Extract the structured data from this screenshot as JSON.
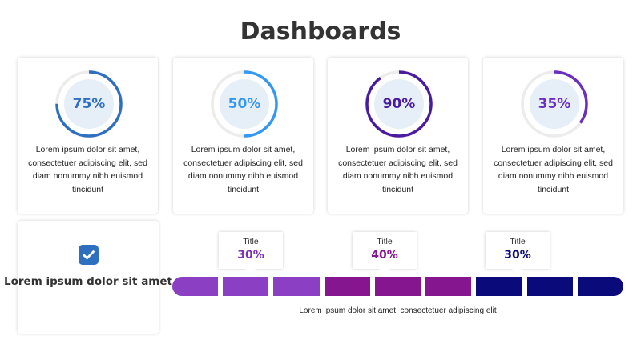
{
  "title": "Dashboards",
  "gauges": [
    {
      "percent": 75,
      "label": "75%",
      "color": "#2e6fc0",
      "text": "Lorem ipsum dolor sit amet, consectetuer adipiscing elit, sed diam nonummy nibh euismod tincidunt"
    },
    {
      "percent": 50,
      "label": "50%",
      "color": "#3398f0",
      "text": "Lorem ipsum dolor sit amet, consectetuer adipiscing elit, sed diam nonummy nibh euismod tincidunt"
    },
    {
      "percent": 90,
      "label": "90%",
      "color": "#4a1aa0",
      "text": "Lorem ipsum dolor sit amet, consectetuer adipiscing elit, sed diam nonummy nibh euismod tincidunt"
    },
    {
      "percent": 35,
      "label": "35%",
      "color": "#6a2fc0",
      "text": "Lorem ipsum dolor sit amet, consectetuer adipiscing elit, sed diam nonummy nibh euismod tincidunt"
    }
  ],
  "check_card": {
    "text": "Lorem ipsum dolor sit amet",
    "icon": "check-icon",
    "icon_color": "#2e6fc0"
  },
  "progress": {
    "segments": 9,
    "groups": [
      {
        "title": "Title",
        "label": "30%",
        "value": 30,
        "segment_count": 3,
        "color": "#8b3fc3",
        "text_color": "#7e30b8"
      },
      {
        "title": "Title",
        "label": "40%",
        "value": 40,
        "segment_count": 3,
        "color": "#861590",
        "text_color": "#861590"
      },
      {
        "title": "Title",
        "label": "30%",
        "value": 30,
        "segment_count": 3,
        "color": "#0a0a7a",
        "text_color": "#0a0a7a"
      }
    ],
    "caption": "Lorem ipsum dolor sit amet, consectetuer adipiscing elit"
  }
}
